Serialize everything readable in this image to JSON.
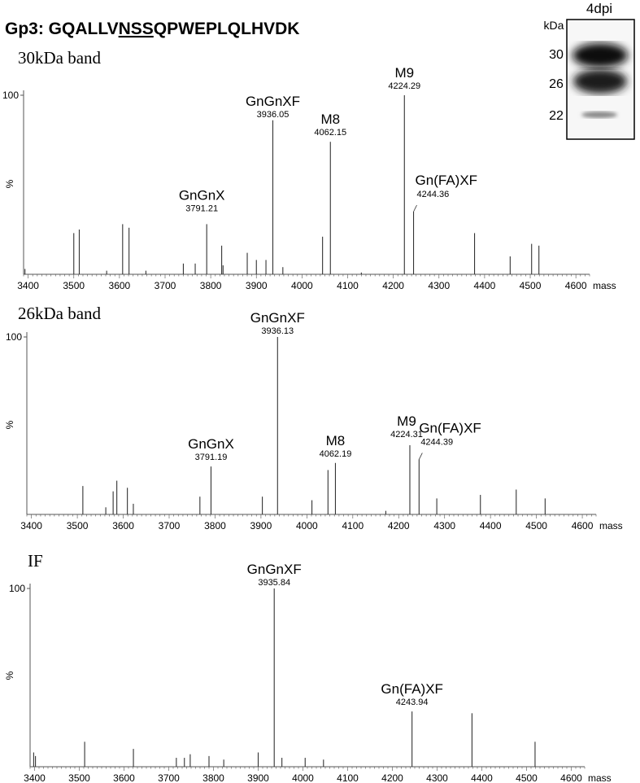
{
  "figure": {
    "title_prefix": "Gp3: GQALLV",
    "title_underlined": "NSS",
    "title_suffix": "QPWEPLQLHVDK"
  },
  "blot": {
    "title": "4dpi",
    "unit_label": "kDa",
    "markers": [
      "30",
      "26",
      "22"
    ]
  },
  "chart_data": [
    {
      "type": "bar",
      "title": "30kDa band",
      "xlabel": "mass",
      "ylabel": "%",
      "xlim": [
        3390,
        4630
      ],
      "ylim": [
        0,
        100
      ],
      "xticks": [
        3400,
        3500,
        3600,
        3700,
        3800,
        3900,
        4000,
        4100,
        4200,
        4300,
        4400,
        4500,
        4600
      ],
      "ytick_label": "100",
      "peaks": [
        {
          "mass": 3393,
          "intensity": 3
        },
        {
          "mass": 3500,
          "intensity": 23
        },
        {
          "mass": 3512,
          "intensity": 25
        },
        {
          "mass": 3572,
          "intensity": 2
        },
        {
          "mass": 3607,
          "intensity": 28
        },
        {
          "mass": 3621,
          "intensity": 26
        },
        {
          "mass": 3658,
          "intensity": 2
        },
        {
          "mass": 3740,
          "intensity": 6
        },
        {
          "mass": 3766,
          "intensity": 6
        },
        {
          "mass": 3791.21,
          "intensity": 28
        },
        {
          "mass": 3824,
          "intensity": 16
        },
        {
          "mass": 3827,
          "intensity": 5
        },
        {
          "mass": 3880,
          "intensity": 12
        },
        {
          "mass": 3900,
          "intensity": 8
        },
        {
          "mass": 3921,
          "intensity": 8
        },
        {
          "mass": 3936.05,
          "intensity": 86
        },
        {
          "mass": 3958,
          "intensity": 4
        },
        {
          "mass": 4045,
          "intensity": 21
        },
        {
          "mass": 4062.15,
          "intensity": 74
        },
        {
          "mass": 4130,
          "intensity": 1
        },
        {
          "mass": 4224.29,
          "intensity": 100
        },
        {
          "mass": 4244.36,
          "intensity": 35
        },
        {
          "mass": 4378,
          "intensity": 23
        },
        {
          "mass": 4456,
          "intensity": 10
        },
        {
          "mass": 4503,
          "intensity": 17
        },
        {
          "mass": 4519,
          "intensity": 16
        }
      ],
      "annotations": [
        {
          "mass": 3791.21,
          "name": "GnGnX",
          "value": "3791.21"
        },
        {
          "mass": 3936.05,
          "name": "GnGnXF",
          "value": "3936.05"
        },
        {
          "mass": 4062.15,
          "name": "M8",
          "value": "4062.15"
        },
        {
          "mass": 4224.29,
          "name": "M9",
          "value": "4224.29"
        },
        {
          "mass": 4244.36,
          "name": "Gn(FA)XF",
          "value": "4244.36"
        }
      ]
    },
    {
      "type": "bar",
      "title": "26kDa band",
      "xlabel": "mass",
      "ylabel": "%",
      "xlim": [
        3390,
        4630
      ],
      "ylim": [
        0,
        100
      ],
      "xticks": [
        3400,
        3500,
        3600,
        3700,
        3800,
        3900,
        4000,
        4100,
        4200,
        4300,
        4400,
        4500,
        4600
      ],
      "ytick_label": "100",
      "peaks": [
        {
          "mass": 3512,
          "intensity": 16
        },
        {
          "mass": 3562,
          "intensity": 4
        },
        {
          "mass": 3578,
          "intensity": 13
        },
        {
          "mass": 3586,
          "intensity": 19
        },
        {
          "mass": 3609,
          "intensity": 15
        },
        {
          "mass": 3622,
          "intensity": 6
        },
        {
          "mass": 3767,
          "intensity": 10
        },
        {
          "mass": 3791.19,
          "intensity": 27
        },
        {
          "mass": 3903,
          "intensity": 10
        },
        {
          "mass": 3936.13,
          "intensity": 100
        },
        {
          "mass": 4011,
          "intensity": 8
        },
        {
          "mass": 4046,
          "intensity": 25
        },
        {
          "mass": 4062.19,
          "intensity": 29
        },
        {
          "mass": 4172,
          "intensity": 2
        },
        {
          "mass": 4224.31,
          "intensity": 39
        },
        {
          "mass": 4244.39,
          "intensity": 31
        },
        {
          "mass": 4283,
          "intensity": 9
        },
        {
          "mass": 4378,
          "intensity": 11
        },
        {
          "mass": 4456,
          "intensity": 14
        },
        {
          "mass": 4519,
          "intensity": 9
        }
      ],
      "annotations": [
        {
          "mass": 3791.19,
          "name": "GnGnX",
          "value": "3791.19"
        },
        {
          "mass": 3936.13,
          "name": "GnGnXF",
          "value": "3936.13"
        },
        {
          "mass": 4062.19,
          "name": "M8",
          "value": "4062.19"
        },
        {
          "mass": 4224.31,
          "name": "M9",
          "value": "4224.31"
        },
        {
          "mass": 4244.39,
          "name": "Gn(FA)XF",
          "value": "4244.39"
        }
      ]
    },
    {
      "type": "bar",
      "title": "IF",
      "xlabel": "mass",
      "ylabel": "%",
      "xlim": [
        3390,
        4630
      ],
      "ylim": [
        0,
        100
      ],
      "xticks": [
        3400,
        3500,
        3600,
        3700,
        3800,
        3900,
        4000,
        4100,
        4200,
        4300,
        4400,
        4500,
        4600
      ],
      "ytick_label": "100",
      "peaks": [
        {
          "mass": 3398,
          "intensity": 8
        },
        {
          "mass": 3402,
          "intensity": 6
        },
        {
          "mass": 3512,
          "intensity": 14
        },
        {
          "mass": 3621,
          "intensity": 10
        },
        {
          "mass": 3717,
          "intensity": 5
        },
        {
          "mass": 3735,
          "intensity": 5
        },
        {
          "mass": 3748,
          "intensity": 7
        },
        {
          "mass": 3790,
          "intensity": 6
        },
        {
          "mass": 3823,
          "intensity": 4
        },
        {
          "mass": 3900,
          "intensity": 8
        },
        {
          "mass": 3935.84,
          "intensity": 100
        },
        {
          "mass": 3953,
          "intensity": 5
        },
        {
          "mass": 4005,
          "intensity": 5
        },
        {
          "mass": 4046,
          "intensity": 4
        },
        {
          "mass": 4243.94,
          "intensity": 31
        },
        {
          "mass": 4378,
          "intensity": 30
        },
        {
          "mass": 4519,
          "intensity": 14
        }
      ],
      "annotations": [
        {
          "mass": 3935.84,
          "name": "GnGnXF",
          "value": "3935.84"
        },
        {
          "mass": 4243.94,
          "name": "Gn(FA)XF",
          "value": "4243.94"
        }
      ]
    }
  ]
}
